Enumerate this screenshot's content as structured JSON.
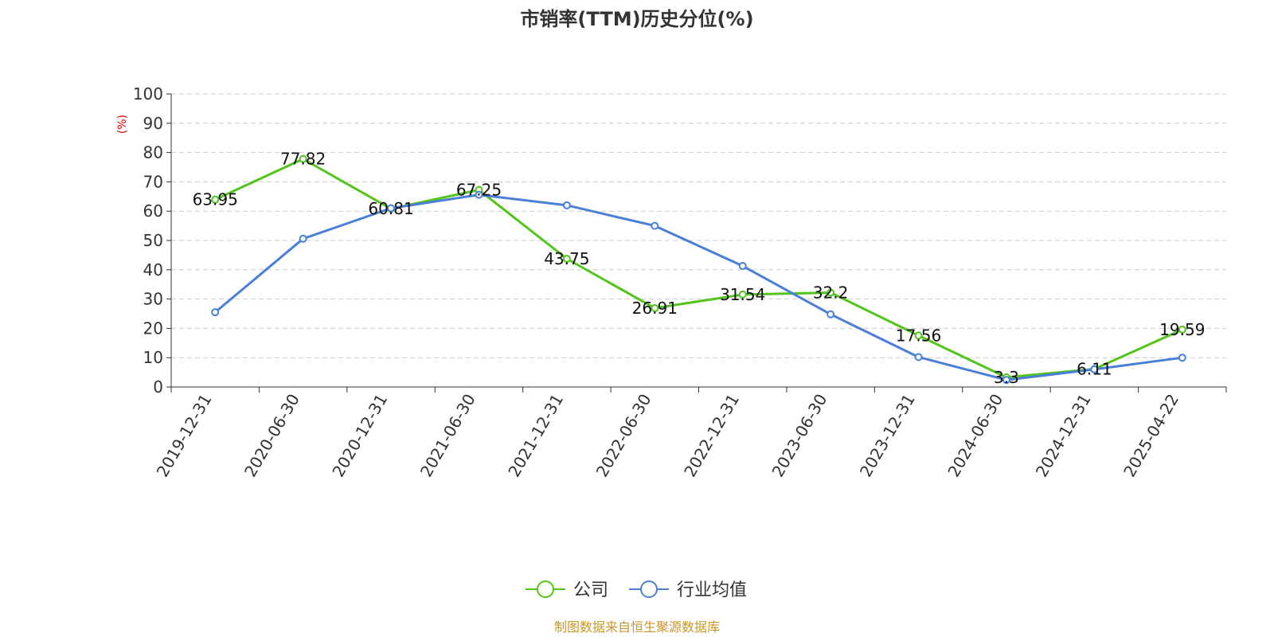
{
  "chart_data": {
    "type": "line",
    "title": "市销率(TTM)历史分位(%)",
    "ylabel": "(%)",
    "ylim": [
      0,
      100
    ],
    "yticks": [
      "0",
      "10",
      "20",
      "30",
      "40",
      "50",
      "60",
      "70",
      "80",
      "90",
      "100"
    ],
    "categories": [
      "2019-12-31",
      "2020-06-30",
      "2020-12-31",
      "2021-06-30",
      "2021-12-31",
      "2022-06-30",
      "2022-12-31",
      "2023-06-30",
      "2023-12-31",
      "2024-06-30",
      "2024-12-31",
      "2025-04-22"
    ],
    "grid": true,
    "legend_position": "bottom",
    "series": [
      {
        "name": "公司",
        "color": "#52c41a",
        "values": [
          63.95,
          77.82,
          60.81,
          67.25,
          43.75,
          26.91,
          31.54,
          32.2,
          17.56,
          3.3,
          6.11,
          19.59
        ],
        "labels": [
          "63.95",
          "77.82",
          "60.81",
          "67.25",
          "43.75",
          "26.91",
          "31.54",
          "32.2",
          "17.56",
          "3.3",
          "6.11",
          "19.59"
        ]
      },
      {
        "name": "行业均值",
        "color": "#4a7fd8",
        "values": [
          25.5,
          50.6,
          61.0,
          65.6,
          62.0,
          55.0,
          41.3,
          24.8,
          10.2,
          2.4,
          6.0,
          10.0
        ]
      }
    ],
    "source": "制图数据来自恒生聚源数据库",
    "colors": {
      "axis": "#333333",
      "grid": "#cccccc",
      "unit": "#e60000",
      "source": "#c8962a"
    }
  }
}
